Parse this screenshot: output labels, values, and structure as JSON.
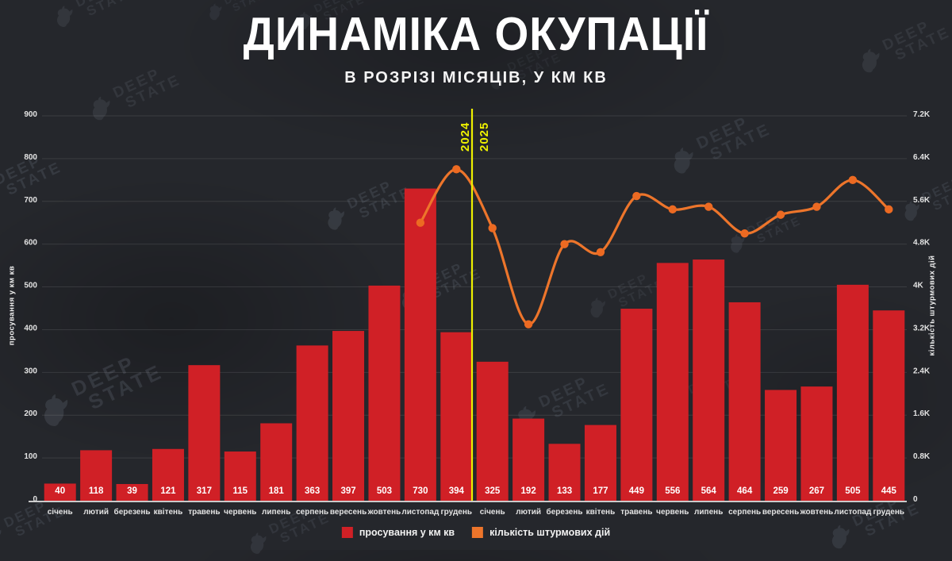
{
  "header": {
    "title": "ДИНАМІКА ОКУПАЦІЇ",
    "subtitle": "В РОЗРІЗІ МІСЯЦІВ, У КМ КВ"
  },
  "watermark": {
    "line1": "DEEP",
    "line2": "STATE"
  },
  "legend": {
    "items": [
      {
        "label": "просування у км кв",
        "color": "#d02026"
      },
      {
        "label": "кількість штурмових дій",
        "color": "#ed752b"
      }
    ]
  },
  "chart_data": {
    "type": "bar",
    "title": "ДИНАМІКА ОКУПАЦІЇ",
    "subtitle": "В РОЗРІЗІ МІСЯЦІВ, У КМ КВ",
    "categories": [
      "січень",
      "лютий",
      "березень",
      "квітень",
      "травень",
      "червень",
      "липень",
      "серпень",
      "вересень",
      "жовтень",
      "листопад",
      "грудень",
      "січень",
      "лютий",
      "березень",
      "квітень",
      "травень",
      "червень",
      "липень",
      "серпень",
      "вересень",
      "жовтень",
      "листопад",
      "грудень"
    ],
    "series": [
      {
        "name": "просування у км кв",
        "type": "bar",
        "axis": "left",
        "color": "#d02026",
        "values": [
          40,
          118,
          39,
          121,
          317,
          115,
          181,
          363,
          397,
          503,
          730,
          394,
          325,
          192,
          133,
          177,
          449,
          556,
          564,
          464,
          259,
          267,
          505,
          445
        ]
      },
      {
        "name": "кількість штурмових дій",
        "type": "line",
        "axis": "right",
        "color": "#ed752b",
        "values": [
          null,
          null,
          null,
          null,
          null,
          null,
          null,
          null,
          null,
          null,
          5200,
          6200,
          5100,
          3300,
          4800,
          4650,
          5700,
          5450,
          5500,
          5000,
          5350,
          5500,
          6000,
          5450
        ]
      }
    ],
    "left_axis": {
      "label": "просування у км кв",
      "min": 0,
      "max": 900,
      "ticks": [
        "0",
        "100",
        "200",
        "300",
        "400",
        "500",
        "600",
        "700",
        "800",
        "900"
      ]
    },
    "right_axis": {
      "label": "кількість штурмових дій",
      "min": 0,
      "max": 7200,
      "ticks": [
        "0",
        "0.8K",
        "1.6K",
        "2.4K",
        "3.2K",
        "4K",
        "4.8K",
        "5.6K",
        "6.4K",
        "7.2K"
      ]
    },
    "year_divider": {
      "after_index": 11,
      "left_label": "2024",
      "right_label": "2025",
      "color": "#edf000"
    },
    "grid": "horizontal",
    "legend_position": "bottom"
  }
}
